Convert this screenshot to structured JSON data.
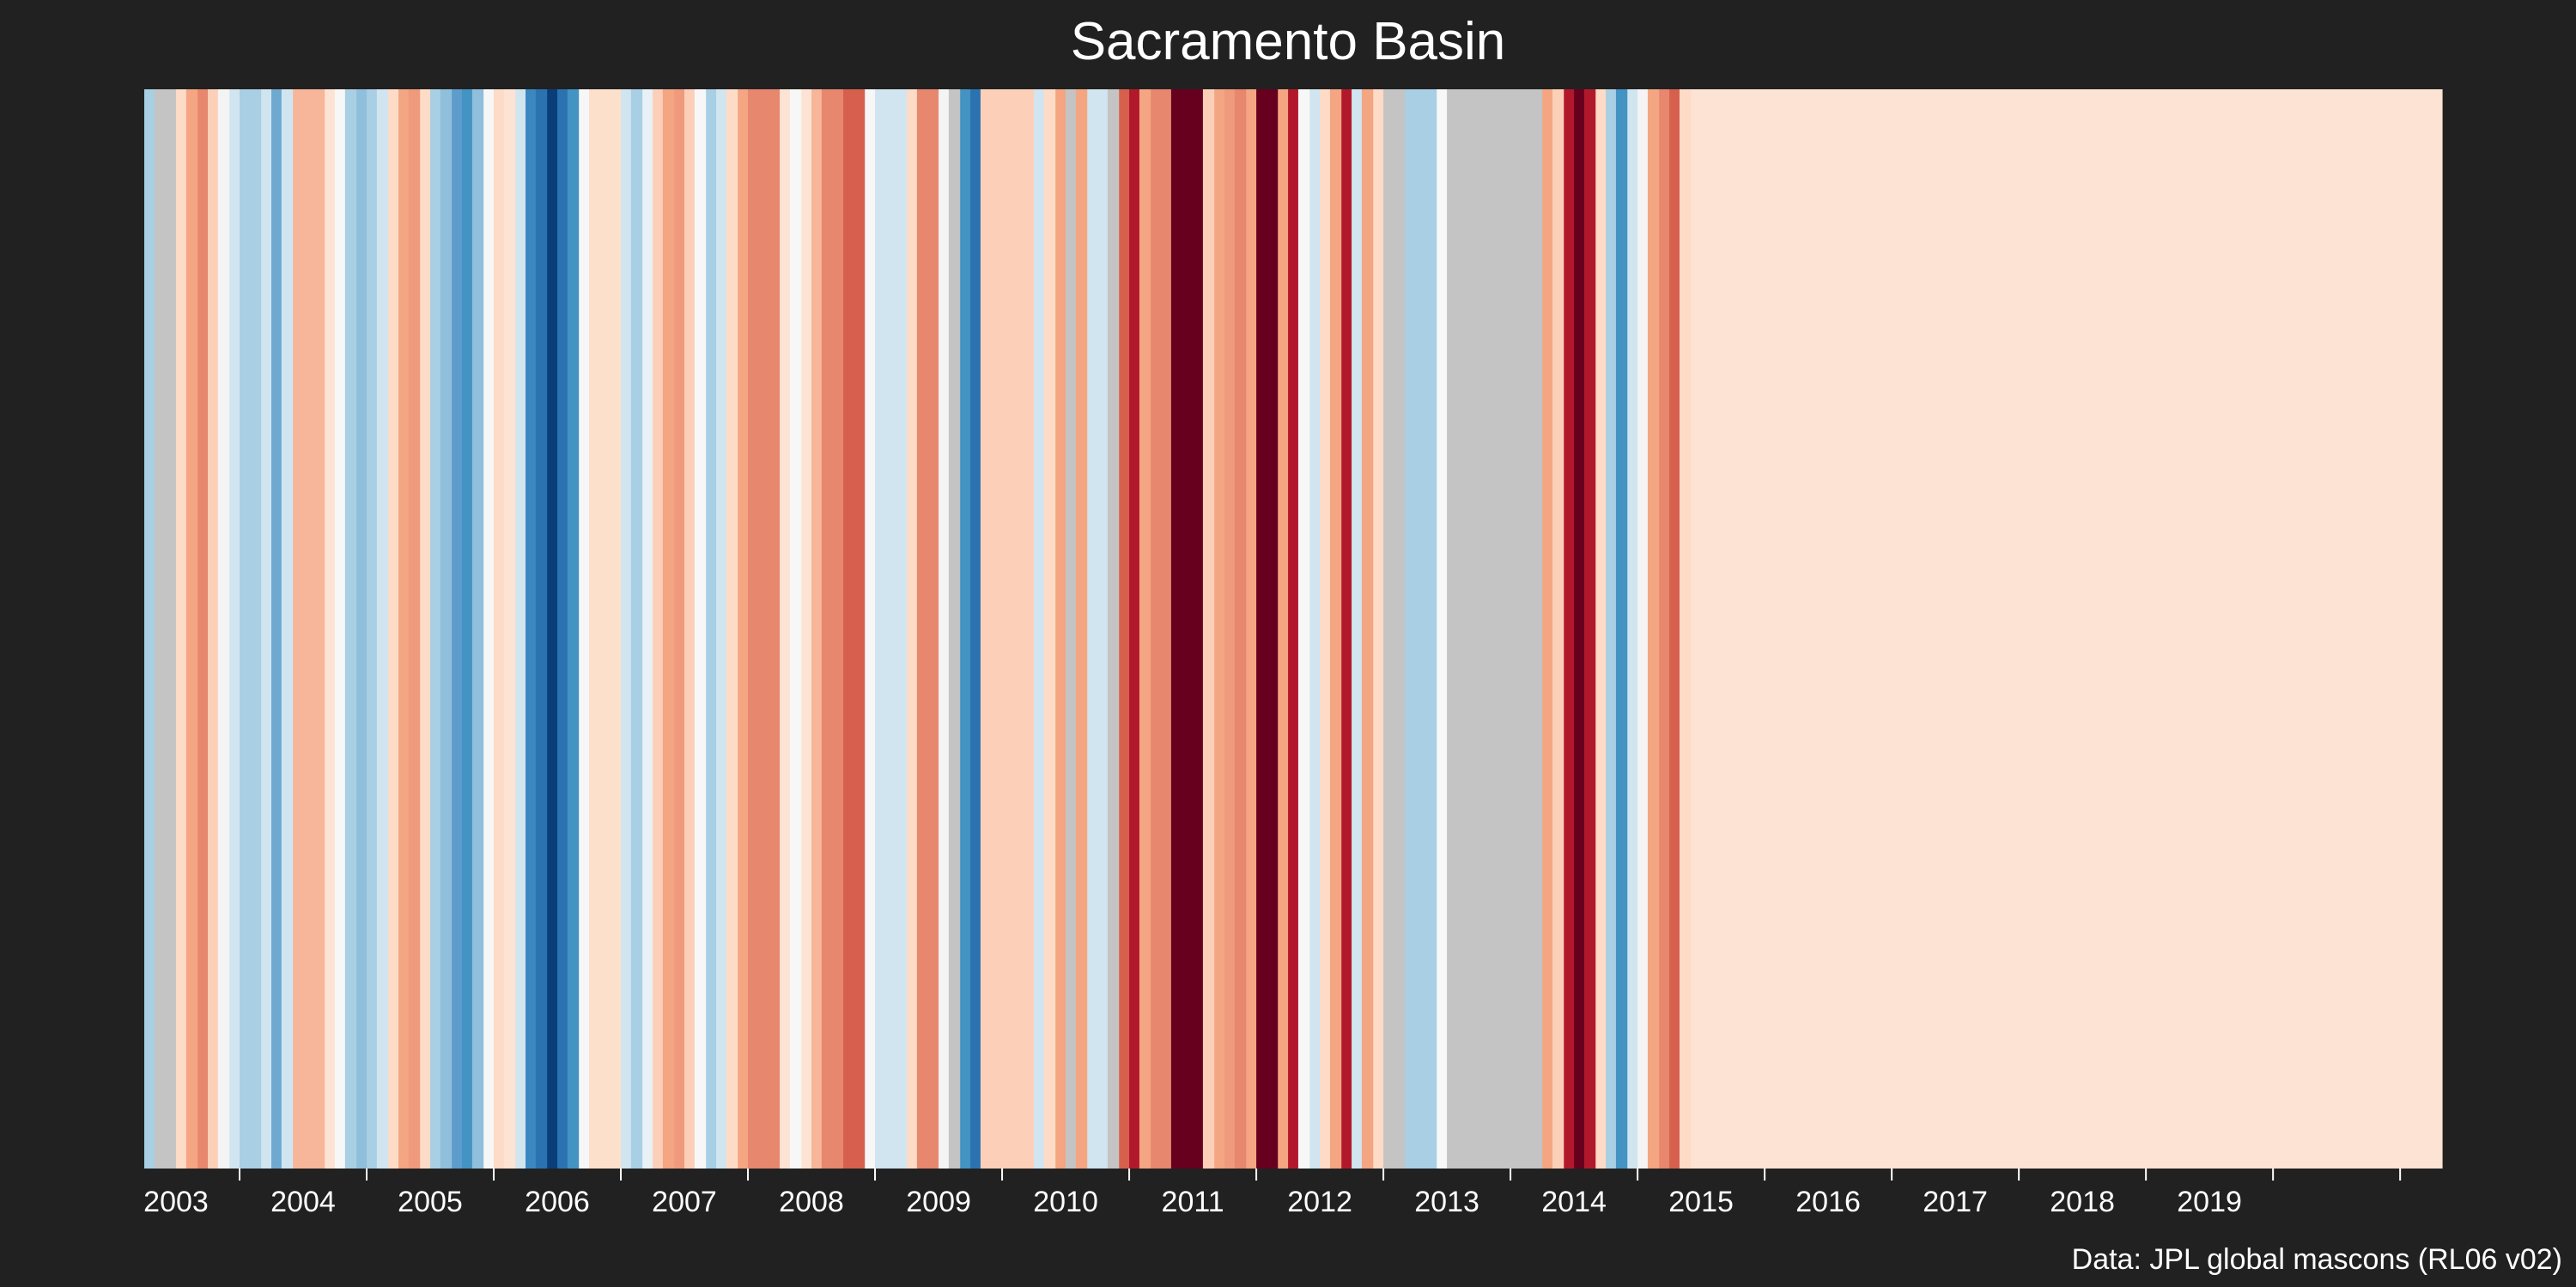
{
  "title": "Sacramento Basin",
  "footer": "Data: JPL global mascons (RL06 v02)",
  "colors": {
    "background": "#212121",
    "text": "#ffffff",
    "missing": "#c4c4c4",
    "palette": [
      "#053061",
      "#2166ac",
      "#4393c3",
      "#92c5de",
      "#d1e5f0",
      "#f7f7f7",
      "#fddbc7",
      "#f4a582",
      "#d6604d",
      "#b2182b",
      "#67001f"
    ]
  },
  "chart_data": {
    "type": "heatmap",
    "title": "Sacramento Basin",
    "xlabel": "",
    "ylabel": "",
    "grid": false,
    "legend": "none",
    "x_range": [
      2002.25,
      2020.33
    ],
    "ticks": [
      2003,
      2004,
      2005,
      2006,
      2007,
      2008,
      2009,
      2010,
      2011,
      2012,
      2013,
      2014,
      2015,
      2016,
      2017,
      2018,
      2019,
      2020
    ],
    "tick_labels": [
      "2003",
      "2004",
      "2005",
      "2006",
      "2007",
      "2008",
      "2009",
      "2010",
      "2011",
      "2012",
      "2013",
      "2014",
      "2015",
      "2016",
      "2017",
      "2018",
      "2019",
      ""
    ],
    "value_scale": "diverging anomaly (blue = wetter, red = drier, grey = no data)",
    "stripes": [
      {
        "x": 2002.25,
        "c": "#a8cfe4"
      },
      {
        "x": 2002.33,
        "c": "#c4c4c4"
      },
      {
        "x": 2002.42,
        "c": "#c4c4c4"
      },
      {
        "x": 2002.5,
        "c": "#fddbc7"
      },
      {
        "x": 2002.58,
        "c": "#f4a582"
      },
      {
        "x": 2002.67,
        "c": "#e7876e"
      },
      {
        "x": 2002.75,
        "c": "#fcd0b8"
      },
      {
        "x": 2002.83,
        "c": "#f4f4f4"
      },
      {
        "x": 2002.92,
        "c": "#d1e5f0"
      },
      {
        "x": 2003.0,
        "c": "#a8cfe4"
      },
      {
        "x": 2003.08,
        "c": "#a8cfe4"
      },
      {
        "x": 2003.17,
        "c": "#d1e5f0"
      },
      {
        "x": 2003.25,
        "c": "#6fa9d0"
      },
      {
        "x": 2003.33,
        "c": "#d1e5f0"
      },
      {
        "x": 2003.42,
        "c": "#f7b599"
      },
      {
        "x": 2003.5,
        "c": "#f7b599"
      },
      {
        "x": 2003.58,
        "c": "#f7b599"
      },
      {
        "x": 2003.67,
        "c": "#fde3d4"
      },
      {
        "x": 2003.75,
        "c": "#f7f7f7"
      },
      {
        "x": 2003.83,
        "c": "#a8cfe4"
      },
      {
        "x": 2003.92,
        "c": "#8fbfdb"
      },
      {
        "x": 2004.0,
        "c": "#a8cfe4"
      },
      {
        "x": 2004.08,
        "c": "#d1e5f0"
      },
      {
        "x": 2004.17,
        "c": "#fddbc7"
      },
      {
        "x": 2004.25,
        "c": "#f4a582"
      },
      {
        "x": 2004.33,
        "c": "#ef9a7c"
      },
      {
        "x": 2004.42,
        "c": "#fddbc7"
      },
      {
        "x": 2004.5,
        "c": "#a8cfe4"
      },
      {
        "x": 2004.58,
        "c": "#8fbfdb"
      },
      {
        "x": 2004.67,
        "c": "#5d9ccb"
      },
      {
        "x": 2004.75,
        "c": "#4393c3"
      },
      {
        "x": 2004.83,
        "c": "#8fbfdb"
      },
      {
        "x": 2004.92,
        "c": "#f7f7f7"
      },
      {
        "x": 2005.0,
        "c": "#fddbc7"
      },
      {
        "x": 2005.08,
        "c": "#fde3d4"
      },
      {
        "x": 2005.17,
        "c": "#d1e5f0"
      },
      {
        "x": 2005.25,
        "c": "#3b88c0"
      },
      {
        "x": 2005.33,
        "c": "#2b72b1"
      },
      {
        "x": 2005.42,
        "c": "#0a3e78"
      },
      {
        "x": 2005.5,
        "c": "#2b72b1"
      },
      {
        "x": 2005.58,
        "c": "#4393c3"
      },
      {
        "x": 2005.67,
        "c": "#f7f7f7"
      },
      {
        "x": 2005.75,
        "c": "#fde0cc"
      },
      {
        "x": 2005.83,
        "c": "#fde0cc"
      },
      {
        "x": 2005.92,
        "c": "#fde0cc"
      },
      {
        "x": 2006.0,
        "c": "#d1e5f0"
      },
      {
        "x": 2006.08,
        "c": "#a8cfe4"
      },
      {
        "x": 2006.17,
        "c": "#e8f1f6"
      },
      {
        "x": 2006.25,
        "c": "#fcd0b8"
      },
      {
        "x": 2006.33,
        "c": "#f4a582"
      },
      {
        "x": 2006.42,
        "c": "#ef9a7c"
      },
      {
        "x": 2006.5,
        "c": "#fcd0b8"
      },
      {
        "x": 2006.58,
        "c": "#f7f7f7"
      },
      {
        "x": 2006.67,
        "c": "#a8cfe4"
      },
      {
        "x": 2006.75,
        "c": "#d1e5f0"
      },
      {
        "x": 2006.83,
        "c": "#fddbc7"
      },
      {
        "x": 2006.92,
        "c": "#f4a582"
      },
      {
        "x": 2007.0,
        "c": "#e7876e"
      },
      {
        "x": 2007.08,
        "c": "#e7876e"
      },
      {
        "x": 2007.17,
        "c": "#e7876e"
      },
      {
        "x": 2007.25,
        "c": "#fde3d4"
      },
      {
        "x": 2007.33,
        "c": "#f7f7f7"
      },
      {
        "x": 2007.42,
        "c": "#fde3d4"
      },
      {
        "x": 2007.5,
        "c": "#f7b599"
      },
      {
        "x": 2007.58,
        "c": "#e7876e"
      },
      {
        "x": 2007.67,
        "c": "#e7876e"
      },
      {
        "x": 2007.75,
        "c": "#d6604d"
      },
      {
        "x": 2007.83,
        "c": "#d6604d"
      },
      {
        "x": 2007.92,
        "c": "#f7f7f7"
      },
      {
        "x": 2008.0,
        "c": "#d1e5f0"
      },
      {
        "x": 2008.08,
        "c": "#d1e5f0"
      },
      {
        "x": 2008.17,
        "c": "#d1e5f0"
      },
      {
        "x": 2008.25,
        "c": "#fddbc7"
      },
      {
        "x": 2008.33,
        "c": "#e7876e"
      },
      {
        "x": 2008.42,
        "c": "#e7876e"
      },
      {
        "x": 2008.5,
        "c": "#f4f4f4"
      },
      {
        "x": 2008.58,
        "c": "#c4c4c4"
      },
      {
        "x": 2008.67,
        "c": "#4393c3"
      },
      {
        "x": 2008.75,
        "c": "#2b72b1"
      },
      {
        "x": 2008.83,
        "c": "#fcd0b8"
      },
      {
        "x": 2008.92,
        "c": "#fcd0b8"
      },
      {
        "x": 2009.0,
        "c": "#fcd0b8"
      },
      {
        "x": 2009.08,
        "c": "#fcd0b8"
      },
      {
        "x": 2009.17,
        "c": "#fcd0b8"
      },
      {
        "x": 2009.25,
        "c": "#d1e5f0"
      },
      {
        "x": 2009.33,
        "c": "#fddbc7"
      },
      {
        "x": 2009.42,
        "c": "#f4a582"
      },
      {
        "x": 2009.5,
        "c": "#c4c4c4"
      },
      {
        "x": 2009.58,
        "c": "#f4a582"
      },
      {
        "x": 2009.67,
        "c": "#d1e5f0"
      },
      {
        "x": 2009.75,
        "c": "#d1e5f0"
      },
      {
        "x": 2009.83,
        "c": "#c4c4c4"
      },
      {
        "x": 2009.92,
        "c": "#d6604d"
      },
      {
        "x": 2010.0,
        "c": "#b2182b"
      },
      {
        "x": 2010.08,
        "c": "#f4a582"
      },
      {
        "x": 2010.17,
        "c": "#e7876e"
      },
      {
        "x": 2010.25,
        "c": "#e7876e"
      },
      {
        "x": 2010.33,
        "c": "#67001f"
      },
      {
        "x": 2010.42,
        "c": "#67001f"
      },
      {
        "x": 2010.5,
        "c": "#67001f"
      },
      {
        "x": 2010.58,
        "c": "#fcd0b8"
      },
      {
        "x": 2010.67,
        "c": "#f4a582"
      },
      {
        "x": 2010.75,
        "c": "#ef9a7c"
      },
      {
        "x": 2010.83,
        "c": "#e7876e"
      },
      {
        "x": 2010.92,
        "c": "#f4a582"
      },
      {
        "x": 2011.0,
        "c": "#67001f"
      },
      {
        "x": 2011.08,
        "c": "#67001f"
      },
      {
        "x": 2011.17,
        "c": "#f4a582"
      },
      {
        "x": 2011.25,
        "c": "#b2182b"
      },
      {
        "x": 2011.33,
        "c": "#f7f7f7"
      },
      {
        "x": 2011.42,
        "c": "#d1e5f0"
      },
      {
        "x": 2011.5,
        "c": "#fddbc7"
      },
      {
        "x": 2011.58,
        "c": "#f4a582"
      },
      {
        "x": 2011.67,
        "c": "#b2182b"
      },
      {
        "x": 2011.75,
        "c": "#d1e5f0"
      },
      {
        "x": 2011.83,
        "c": "#f4a582"
      },
      {
        "x": 2011.92,
        "c": "#fddbc7"
      },
      {
        "x": 2012.0,
        "c": "#c4c4c4"
      },
      {
        "x": 2012.08,
        "c": "#c4c4c4"
      },
      {
        "x": 2012.17,
        "c": "#a8cfe4"
      },
      {
        "x": 2012.25,
        "c": "#a8cfe4"
      },
      {
        "x": 2012.33,
        "c": "#a8cfe4"
      },
      {
        "x": 2012.42,
        "c": "#f7f7f7"
      },
      {
        "x": 2012.5,
        "c": "#c4c4c4"
      },
      {
        "x": 2012.58,
        "c": "#c4c4c4"
      },
      {
        "x": 2012.67,
        "c": "#c4c4c4"
      },
      {
        "x": 2012.75,
        "c": "#c4c4c4"
      },
      {
        "x": 2012.83,
        "c": "#c4c4c4"
      },
      {
        "x": 2012.92,
        "c": "#c4c4c4"
      },
      {
        "x": 2013.0,
        "c": "#c4c4c4"
      },
      {
        "x": 2013.08,
        "c": "#c4c4c4"
      },
      {
        "x": 2013.17,
        "c": "#c4c4c4"
      },
      {
        "x": 2013.25,
        "c": "#f4a582"
      },
      {
        "x": 2013.33,
        "c": "#fcd0b8"
      },
      {
        "x": 2013.42,
        "c": "#b2182b"
      },
      {
        "x": 2013.5,
        "c": "#67001f"
      },
      {
        "x": 2013.58,
        "c": "#b2182b"
      },
      {
        "x": 2013.67,
        "c": "#fddbc7"
      },
      {
        "x": 2013.75,
        "c": "#a8cfe4"
      },
      {
        "x": 2013.83,
        "c": "#4393c3"
      },
      {
        "x": 2013.92,
        "c": "#d1e5f0"
      },
      {
        "x": 2014.0,
        "c": "#f4f4f4"
      },
      {
        "x": 2014.08,
        "c": "#f4a582"
      },
      {
        "x": 2014.17,
        "c": "#e7876e"
      },
      {
        "x": 2014.25,
        "c": "#d6604d"
      },
      {
        "x": 2014.33,
        "c": "#fddbc7"
      },
      {
        "x": 2014.42,
        "c": "#fde3d4"
      },
      {
        "x": 2014.5,
        "c": "#fde3d4"
      }
    ]
  }
}
